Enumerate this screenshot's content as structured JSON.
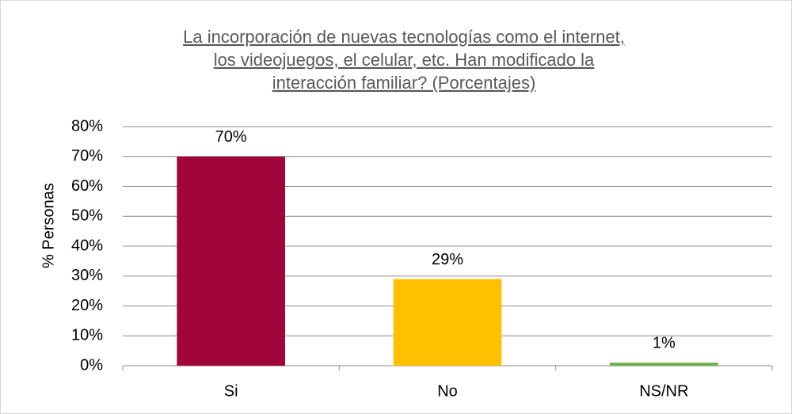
{
  "chart_data": {
    "type": "bar",
    "title": [
      "La incorporación de nuevas tecnologías como el internet,",
      "los videojuegos, el celular, etc. Han   modificado la",
      "interacción familiar? (Porcentajes)"
    ],
    "y_label": "% Personas",
    "categories": [
      "Si",
      "No",
      "NS/NR"
    ],
    "values": [
      70,
      29,
      1
    ],
    "value_labels": [
      "70%",
      "29%",
      "1%"
    ],
    "colors": [
      "#a0063c",
      "#ffc000",
      "#70ad47"
    ],
    "ylim": [
      0,
      80
    ],
    "yticks": [
      {
        "value": 0,
        "label": "0%"
      },
      {
        "value": 10,
        "label": "10%"
      },
      {
        "value": 20,
        "label": "20%"
      },
      {
        "value": 30,
        "label": "30%"
      },
      {
        "value": 40,
        "label": "40%"
      },
      {
        "value": 50,
        "label": "50%"
      },
      {
        "value": 60,
        "label": "60%"
      },
      {
        "value": 70,
        "label": "70%"
      },
      {
        "value": 80,
        "label": "80%"
      }
    ],
    "grid": true
  }
}
